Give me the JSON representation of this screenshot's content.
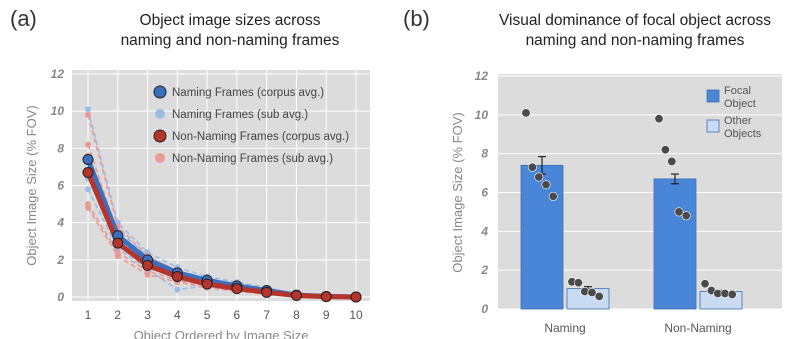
{
  "panel_a": {
    "letter": "(a)",
    "title_line1": "Object image sizes across",
    "title_line2": "naming and non-naming frames"
  },
  "panel_b": {
    "letter": "(b)",
    "title_line1": "Visual dominance of focal object across",
    "title_line2": "naming and non-naming frames"
  },
  "colors": {
    "naming_corpus": "#3d6fbf",
    "naming_sub": "#9bbce6",
    "nonnaming_corpus": "#b5342c",
    "nonnaming_sub": "#e89a95",
    "focal_bar": "#4a86d8",
    "other_bar": "#c9daf3",
    "plot_bg": "#dcdcdc",
    "dot": "#4a4a4a"
  },
  "chart_data": [
    {
      "type": "line",
      "xlabel": "Object Ordered by Image Size",
      "ylabel": "Object Image Size (% FOV)",
      "xlim": [
        1,
        10
      ],
      "ylim": [
        0,
        12
      ],
      "yticks": [
        "0",
        "2",
        "4",
        "6",
        "8",
        "10",
        "12"
      ],
      "x": [
        1,
        2,
        3,
        4,
        5,
        6,
        7,
        8,
        9,
        10
      ],
      "grid": true,
      "legend_position": "top-right",
      "series": [
        {
          "name": "Naming Frames (corpus avg.)",
          "values": [
            7.4,
            3.3,
            2.0,
            1.3,
            0.9,
            0.6,
            0.35,
            0.1,
            0.03,
            0.0
          ]
        },
        {
          "name": "Naming Frames (sub avg.)",
          "subjects": [
            [
              10.1,
              4.0,
              2.4,
              1.6,
              1.1,
              0.8,
              0.5,
              0.15,
              0.05,
              0.0
            ],
            [
              7.3,
              3.6,
              2.2,
              1.4,
              1.0,
              0.7,
              0.4,
              0.12,
              0.04,
              0.0
            ],
            [
              6.8,
              3.1,
              1.9,
              1.2,
              0.8,
              0.5,
              0.3,
              0.08,
              0.02,
              0.0
            ],
            [
              6.4,
              3.0,
              1.7,
              1.1,
              0.7,
              0.45,
              0.25,
              0.07,
              0.02,
              0.0
            ],
            [
              5.8,
              2.6,
              1.5,
              0.4,
              0.6,
              0.4,
              0.2,
              0.06,
              0.01,
              0.0
            ]
          ]
        },
        {
          "name": "Non-Naming Frames (corpus avg.)",
          "values": [
            6.7,
            2.9,
            1.7,
            1.1,
            0.7,
            0.45,
            0.25,
            0.08,
            0.02,
            0.0
          ]
        },
        {
          "name": "Non-Naming Frames (sub avg.)",
          "subjects": [
            [
              9.8,
              3.8,
              2.2,
              1.4,
              0.95,
              0.65,
              0.4,
              0.12,
              0.04,
              0.0
            ],
            [
              8.2,
              3.4,
              2.0,
              1.3,
              0.85,
              0.55,
              0.3,
              0.1,
              0.03,
              0.0
            ],
            [
              7.6,
              3.0,
              1.8,
              1.1,
              0.75,
              0.5,
              0.25,
              0.08,
              0.02,
              0.0
            ],
            [
              5.0,
              2.4,
              1.4,
              0.9,
              0.6,
              0.35,
              0.2,
              0.05,
              0.01,
              0.0
            ],
            [
              4.8,
              2.2,
              1.2,
              0.8,
              0.5,
              0.3,
              0.15,
              0.04,
              0.01,
              0.0
            ]
          ]
        }
      ]
    },
    {
      "type": "bar",
      "ylabel": "Object Image Size (% FOV)",
      "ylim": [
        0,
        12
      ],
      "yticks": [
        "0",
        "2",
        "4",
        "6",
        "8",
        "10",
        "12"
      ],
      "categories": [
        "Naming",
        "Non-Naming"
      ],
      "grid": true,
      "legend_position": "top-right",
      "series": [
        {
          "name": "Focal Object",
          "legend_lines": [
            "Focal",
            "Object"
          ],
          "values": [
            7.4,
            6.7
          ],
          "errors": [
            0.45,
            0.25
          ],
          "subject_points": [
            [
              10.1,
              7.3,
              6.8,
              6.4,
              5.8
            ],
            [
              9.8,
              8.2,
              7.6,
              5.0,
              4.8
            ]
          ]
        },
        {
          "name": "Other Objects",
          "legend_lines": [
            "Other",
            "Objects"
          ],
          "values": [
            1.05,
            0.9
          ],
          "errors": [
            0.1,
            0.06
          ],
          "subject_points": [
            [
              1.4,
              1.35,
              0.9,
              0.85,
              0.65
            ],
            [
              1.3,
              0.95,
              0.8,
              0.8,
              0.75
            ]
          ]
        }
      ]
    }
  ]
}
